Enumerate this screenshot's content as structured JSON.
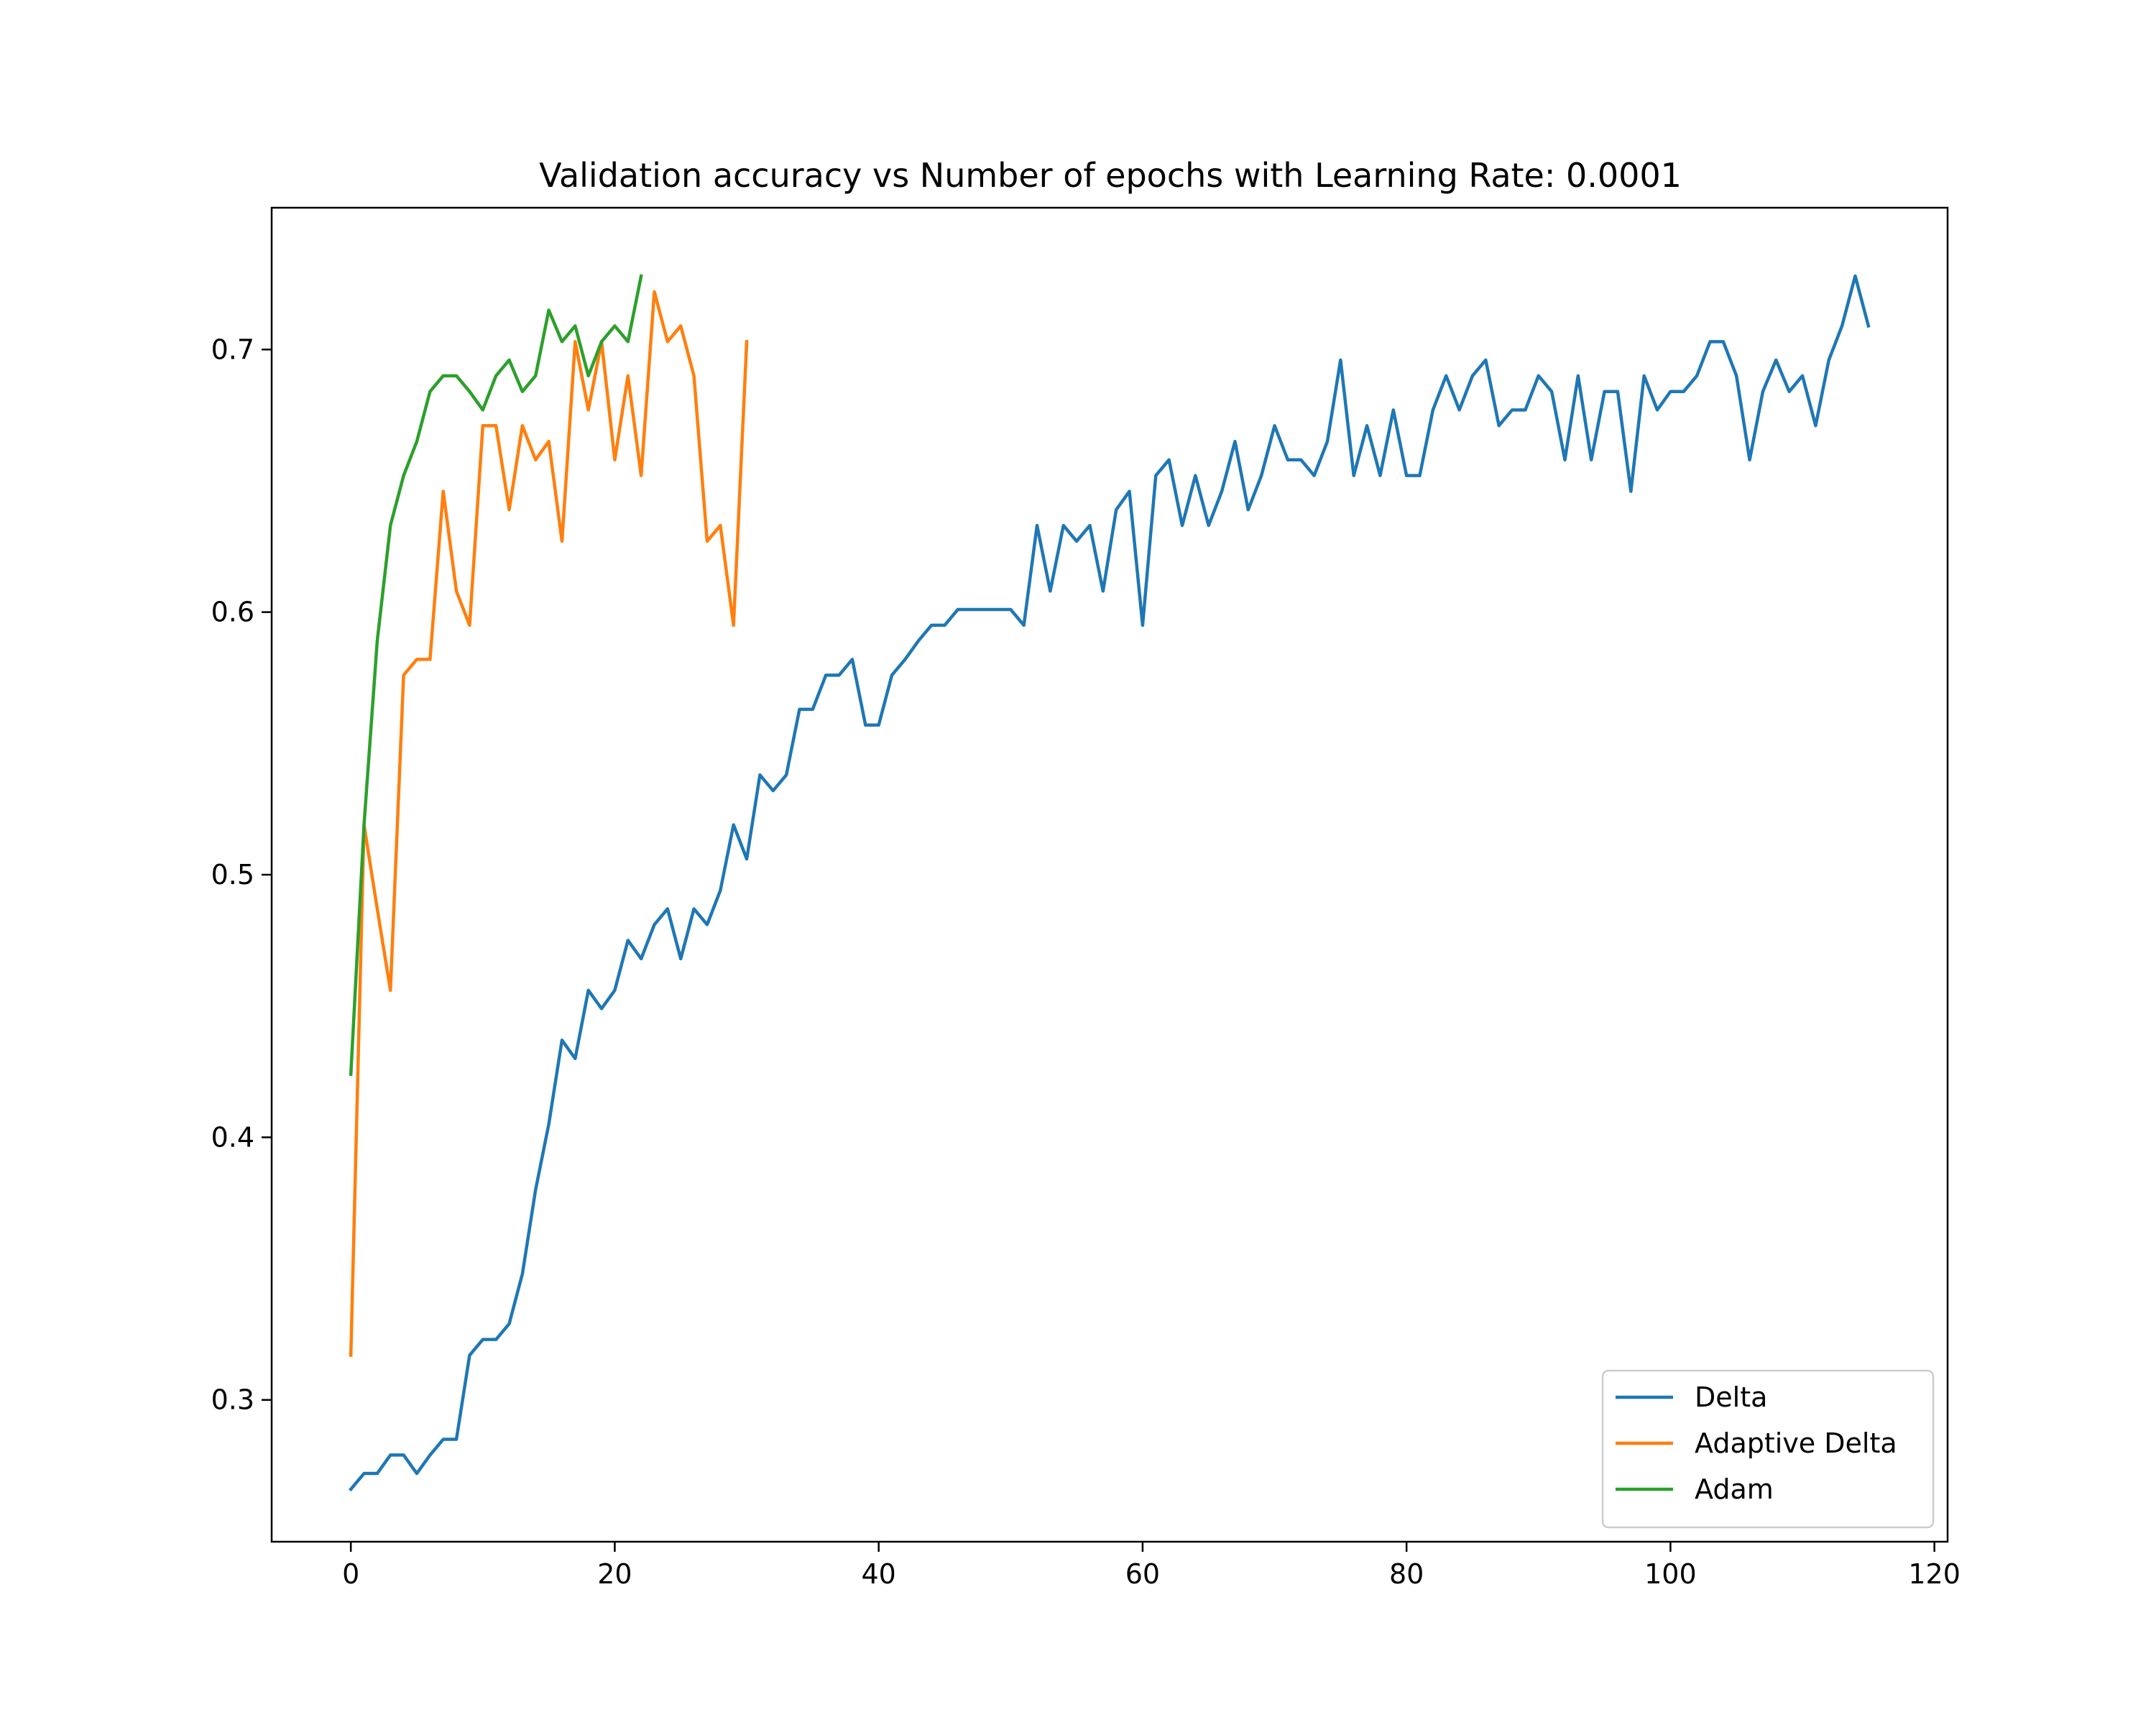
{
  "chart_data": {
    "type": "line",
    "title": "Validation accuracy vs Number of epochs with Learning Rate: 0.0001",
    "xlabel": "",
    "ylabel": "",
    "xlim": [
      -6,
      121
    ],
    "ylim": [
      0.246,
      0.754
    ],
    "x_ticks": [
      0,
      20,
      40,
      60,
      80,
      100,
      120
    ],
    "y_ticks": [
      0.3,
      0.4,
      0.5,
      0.6,
      0.7
    ],
    "x_tick_labels": [
      "0",
      "20",
      "40",
      "60",
      "80",
      "100",
      "120"
    ],
    "y_tick_labels": [
      "0.3",
      "0.4",
      "0.5",
      "0.6",
      "0.7"
    ],
    "grid": false,
    "legend_position": "bottom-right",
    "series": [
      {
        "name": "Delta",
        "color": "#1f77b4",
        "values": [
          0.266,
          0.272,
          0.272,
          0.279,
          0.279,
          0.272,
          0.279,
          0.285,
          0.285,
          0.317,
          0.323,
          0.323,
          0.329,
          0.348,
          0.38,
          0.405,
          0.437,
          0.43,
          0.456,
          0.449,
          0.456,
          0.475,
          0.468,
          0.481,
          0.487,
          0.468,
          0.487,
          0.481,
          0.494,
          0.519,
          0.506,
          0.538,
          0.532,
          0.538,
          0.563,
          0.563,
          0.576,
          0.576,
          0.582,
          0.557,
          0.557,
          0.576,
          0.582,
          0.589,
          0.595,
          0.595,
          0.601,
          0.601,
          0.601,
          0.601,
          0.601,
          0.595,
          0.633,
          0.608,
          0.633,
          0.627,
          0.633,
          0.608,
          0.639,
          0.646,
          0.595,
          0.652,
          0.658,
          0.633,
          0.652,
          0.633,
          0.646,
          0.665,
          0.639,
          0.652,
          0.671,
          0.658,
          0.658,
          0.652,
          0.665,
          0.696,
          0.652,
          0.671,
          0.652,
          0.677,
          0.652,
          0.652,
          0.677,
          0.69,
          0.677,
          0.69,
          0.696,
          0.671,
          0.677,
          0.677,
          0.69,
          0.684,
          0.658,
          0.69,
          0.658,
          0.684,
          0.684,
          0.646,
          0.69,
          0.677,
          0.684,
          0.684,
          0.69,
          0.703,
          0.703,
          0.69,
          0.658,
          0.684,
          0.696,
          0.684,
          0.69,
          0.671,
          0.696,
          0.709,
          0.728,
          0.709
        ]
      },
      {
        "name": "Adaptive Delta",
        "color": "#ff7f0e",
        "values": [
          0.317,
          0.519,
          0.487,
          0.456,
          0.576,
          0.582,
          0.582,
          0.646,
          0.608,
          0.595,
          0.671,
          0.671,
          0.639,
          0.671,
          0.658,
          0.665,
          0.627,
          0.703,
          0.677,
          0.703,
          0.658,
          0.69,
          0.652,
          0.722,
          0.703,
          0.709,
          0.69,
          0.627,
          0.633,
          0.595,
          0.703
        ]
      },
      {
        "name": "Adam",
        "color": "#2ca02c",
        "values": [
          0.424,
          0.519,
          0.589,
          0.633,
          0.652,
          0.665,
          0.684,
          0.69,
          0.69,
          0.684,
          0.677,
          0.69,
          0.696,
          0.684,
          0.69,
          0.715,
          0.703,
          0.709,
          0.69,
          0.703,
          0.709,
          0.703,
          0.728
        ]
      }
    ]
  }
}
